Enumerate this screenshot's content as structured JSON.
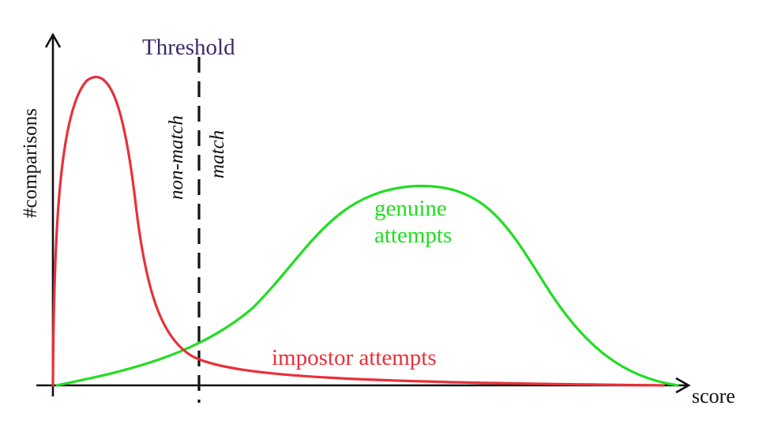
{
  "labels": {
    "threshold": "Threshold",
    "y_axis": "#comparisons",
    "x_axis": "score",
    "non_match": "non-match",
    "match": "match",
    "genuine_line1": "genuine",
    "genuine_line2": "attempts",
    "impostor": "impostor attempts"
  },
  "colors": {
    "genuine": "#22dd22",
    "impostor": "#e8303a",
    "threshold_text": "#3a2a6a",
    "ink": "#111111"
  }
}
